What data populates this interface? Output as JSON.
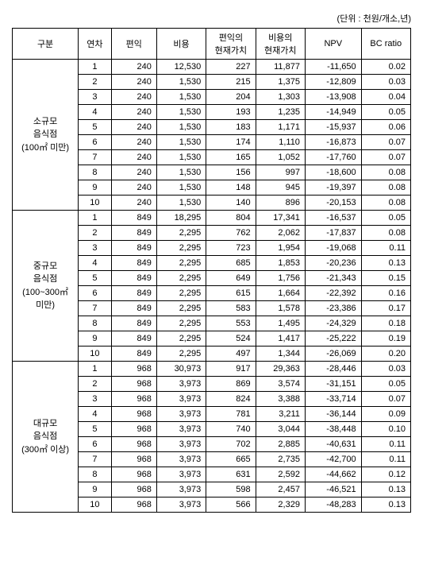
{
  "unit_label": "(단위 : 천원/개소,년)",
  "headers": [
    "구분",
    "연차",
    "편익",
    "비용",
    "편익의\n현재가치",
    "비용의\n현재가치",
    "NPV",
    "BC ratio"
  ],
  "groups": [
    {
      "label": "소규모\n음식점\n(100㎡ 미만)",
      "rows": [
        [
          "1",
          "240",
          "12,530",
          "227",
          "11,877",
          "-11,650",
          "0.02"
        ],
        [
          "2",
          "240",
          "1,530",
          "215",
          "1,375",
          "-12,809",
          "0.03"
        ],
        [
          "3",
          "240",
          "1,530",
          "204",
          "1,303",
          "-13,908",
          "0.04"
        ],
        [
          "4",
          "240",
          "1,530",
          "193",
          "1,235",
          "-14,949",
          "0.05"
        ],
        [
          "5",
          "240",
          "1,530",
          "183",
          "1,171",
          "-15,937",
          "0.06"
        ],
        [
          "6",
          "240",
          "1,530",
          "174",
          "1,110",
          "-16,873",
          "0.07"
        ],
        [
          "7",
          "240",
          "1,530",
          "165",
          "1,052",
          "-17,760",
          "0.07"
        ],
        [
          "8",
          "240",
          "1,530",
          "156",
          "997",
          "-18,600",
          "0.08"
        ],
        [
          "9",
          "240",
          "1,530",
          "148",
          "945",
          "-19,397",
          "0.08"
        ],
        [
          "10",
          "240",
          "1,530",
          "140",
          "896",
          "-20,153",
          "0.08"
        ]
      ]
    },
    {
      "label": "중규모\n음식점\n(100~300㎡\n미만)",
      "rows": [
        [
          "1",
          "849",
          "18,295",
          "804",
          "17,341",
          "-16,537",
          "0.05"
        ],
        [
          "2",
          "849",
          "2,295",
          "762",
          "2,062",
          "-17,837",
          "0.08"
        ],
        [
          "3",
          "849",
          "2,295",
          "723",
          "1,954",
          "-19,068",
          "0.11"
        ],
        [
          "4",
          "849",
          "2,295",
          "685",
          "1,853",
          "-20,236",
          "0.13"
        ],
        [
          "5",
          "849",
          "2,295",
          "649",
          "1,756",
          "-21,343",
          "0.15"
        ],
        [
          "6",
          "849",
          "2,295",
          "615",
          "1,664",
          "-22,392",
          "0.16"
        ],
        [
          "7",
          "849",
          "2,295",
          "583",
          "1,578",
          "-23,386",
          "0.17"
        ],
        [
          "8",
          "849",
          "2,295",
          "553",
          "1,495",
          "-24,329",
          "0.18"
        ],
        [
          "9",
          "849",
          "2,295",
          "524",
          "1,417",
          "-25,222",
          "0.19"
        ],
        [
          "10",
          "849",
          "2,295",
          "497",
          "1,344",
          "-26,069",
          "0.20"
        ]
      ]
    },
    {
      "label": "대규모\n음식점\n(300㎡ 이상)",
      "rows": [
        [
          "1",
          "968",
          "30,973",
          "917",
          "29,363",
          "-28,446",
          "0.03"
        ],
        [
          "2",
          "968",
          "3,973",
          "869",
          "3,574",
          "-31,151",
          "0.05"
        ],
        [
          "3",
          "968",
          "3,973",
          "824",
          "3,388",
          "-33,714",
          "0.07"
        ],
        [
          "4",
          "968",
          "3,973",
          "781",
          "3,211",
          "-36,144",
          "0.09"
        ],
        [
          "5",
          "968",
          "3,973",
          "740",
          "3,044",
          "-38,448",
          "0.10"
        ],
        [
          "6",
          "968",
          "3,973",
          "702",
          "2,885",
          "-40,631",
          "0.11"
        ],
        [
          "7",
          "968",
          "3,973",
          "665",
          "2,735",
          "-42,700",
          "0.11"
        ],
        [
          "8",
          "968",
          "3,973",
          "631",
          "2,592",
          "-44,662",
          "0.12"
        ],
        [
          "9",
          "968",
          "3,973",
          "598",
          "2,457",
          "-46,521",
          "0.13"
        ],
        [
          "10",
          "968",
          "3,973",
          "566",
          "2,329",
          "-48,283",
          "0.13"
        ]
      ]
    }
  ]
}
